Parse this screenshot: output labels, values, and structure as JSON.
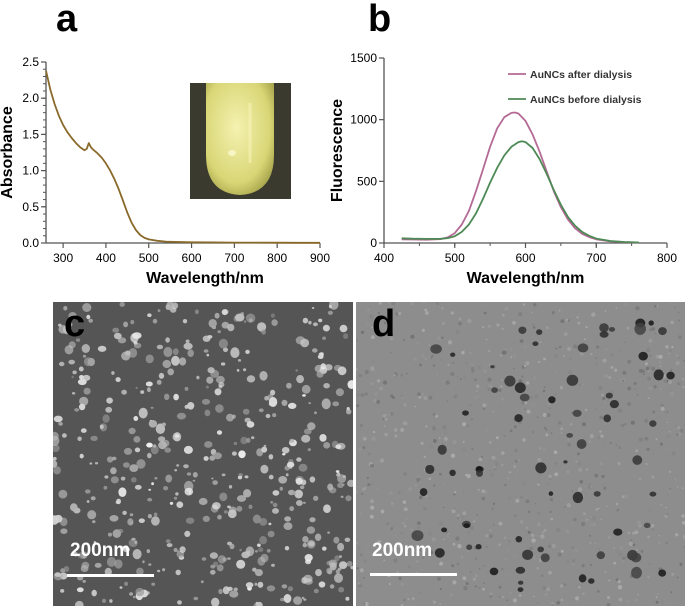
{
  "panels": {
    "a": "a",
    "b": "b",
    "c": "c",
    "d": "d"
  },
  "chart_data": [
    {
      "type": "line",
      "panel": "a",
      "xlabel": "Wavelength/nm",
      "ylabel": "Absorbance",
      "xlim": [
        260,
        900
      ],
      "ylim": [
        0,
        2.5
      ],
      "xticks": [
        300,
        400,
        500,
        600,
        700,
        800,
        900
      ],
      "yticks": [
        0.0,
        0.5,
        1.0,
        1.5,
        2.0,
        2.5
      ],
      "yticklabels": [
        "0.0",
        "0.5",
        "1.0",
        "1.5",
        "2.0",
        "2.5"
      ],
      "grid": false,
      "series": [
        {
          "color": "#8a6a2a",
          "x": [
            260,
            270,
            280,
            290,
            300,
            310,
            320,
            330,
            340,
            350,
            355,
            360,
            365,
            370,
            380,
            390,
            400,
            410,
            420,
            430,
            440,
            450,
            460,
            470,
            480,
            490,
            500,
            520,
            540,
            560,
            600,
            650,
            700,
            750,
            800,
            850,
            900
          ],
          "y": [
            2.38,
            2.12,
            1.92,
            1.76,
            1.63,
            1.53,
            1.45,
            1.38,
            1.32,
            1.28,
            1.3,
            1.38,
            1.32,
            1.29,
            1.24,
            1.18,
            1.1,
            1.0,
            0.88,
            0.74,
            0.58,
            0.42,
            0.28,
            0.18,
            0.11,
            0.07,
            0.05,
            0.03,
            0.02,
            0.015,
            0.01,
            0.008,
            0.006,
            0.005,
            0.004,
            0.003,
            0.003
          ]
        }
      ]
    },
    {
      "type": "line",
      "panel": "b",
      "xlabel": "Wavelength/nm",
      "ylabel": "Fluorescence",
      "xlim": [
        400,
        800
      ],
      "ylim": [
        0,
        1500
      ],
      "xticks": [
        400,
        500,
        600,
        700,
        800
      ],
      "yticks": [
        0,
        500,
        1000,
        1500
      ],
      "grid": false,
      "legend_position": "top-right",
      "series": [
        {
          "name": "AuNCs after dialysis",
          "color": "#b46a95",
          "x": [
            425,
            440,
            460,
            480,
            490,
            500,
            510,
            520,
            530,
            540,
            550,
            560,
            570,
            580,
            585,
            590,
            600,
            610,
            620,
            630,
            640,
            650,
            660,
            670,
            680,
            690,
            700,
            720,
            740,
            760
          ],
          "y": [
            30,
            28,
            27,
            32,
            45,
            80,
            150,
            260,
            420,
            600,
            780,
            930,
            1020,
            1055,
            1058,
            1050,
            990,
            880,
            740,
            580,
            420,
            290,
            190,
            120,
            75,
            48,
            30,
            14,
            7,
            4
          ]
        },
        {
          "name": "AuNCs before dialysis",
          "color": "#4e8a55",
          "x": [
            425,
            440,
            460,
            480,
            490,
            500,
            510,
            520,
            530,
            540,
            550,
            560,
            570,
            580,
            590,
            595,
            600,
            610,
            620,
            630,
            640,
            650,
            660,
            670,
            680,
            690,
            700,
            720,
            740,
            760
          ],
          "y": [
            38,
            35,
            33,
            34,
            40,
            55,
            90,
            150,
            240,
            360,
            490,
            610,
            710,
            780,
            818,
            825,
            818,
            770,
            680,
            560,
            430,
            310,
            210,
            140,
            90,
            58,
            36,
            16,
            8,
            4
          ]
        }
      ]
    }
  ],
  "micrographs": {
    "sem_scale": "200nm",
    "tem_scale": "200nm"
  }
}
